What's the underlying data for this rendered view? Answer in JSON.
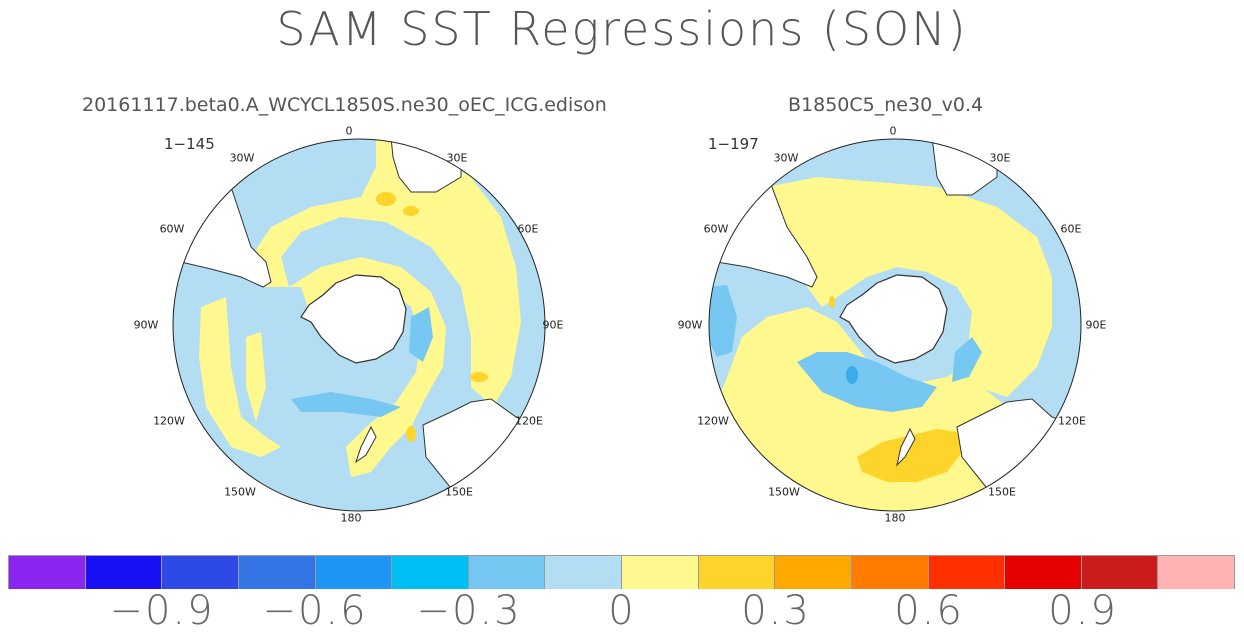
{
  "title": "SAM SST Regressions (SON)",
  "panels": [
    {
      "title": "20161117.beta0.A_WCYCL1850S.ne30_oEC_ICG.edison",
      "note": "1−145"
    },
    {
      "title": "B1850C5_ne30_v0.4",
      "note": "1−197"
    }
  ],
  "grid_labels": [
    "0",
    "30E",
    "60E",
    "90E",
    "120E",
    "150E",
    "180",
    "150W",
    "120W",
    "90W",
    "60W",
    "30W"
  ],
  "colorbar": {
    "colors": [
      "#8a26ef",
      "#1a10f5",
      "#2e4ae6",
      "#3475e6",
      "#1e96f5",
      "#00bff4",
      "#76c8f2",
      "#b3ddf2",
      "#fff88e",
      "#ffd42a",
      "#ffa900",
      "#ff7c00",
      "#ff2f00",
      "#e60000",
      "#cc1b1b",
      "#ffb3b3"
    ],
    "tick_labels": [
      "−0.9",
      "−0.6",
      "−0.3",
      "0",
      "0.3",
      "0.6",
      "0.9"
    ]
  },
  "fill_colors": {
    "ocean_neg": "#b3ddf2",
    "ocean_pos": "#fff88e",
    "mid_neg": "#76c8f2",
    "strong_neg": "#3daaea",
    "mid_pos": "#ffd42a",
    "land": "#ffffff"
  }
}
